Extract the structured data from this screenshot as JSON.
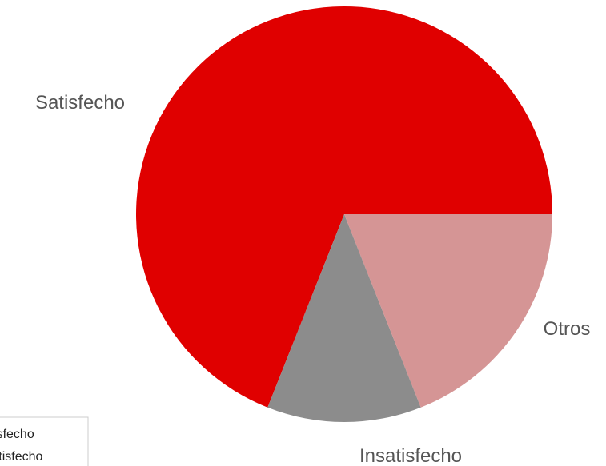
{
  "chart_data": {
    "type": "pie",
    "categories": [
      "Satisfecho",
      "Insatisfecho",
      "Otros"
    ],
    "values": [
      69,
      12,
      19
    ],
    "colors": [
      "#e00000",
      "#8c8c8c",
      "#d59595"
    ]
  }
}
